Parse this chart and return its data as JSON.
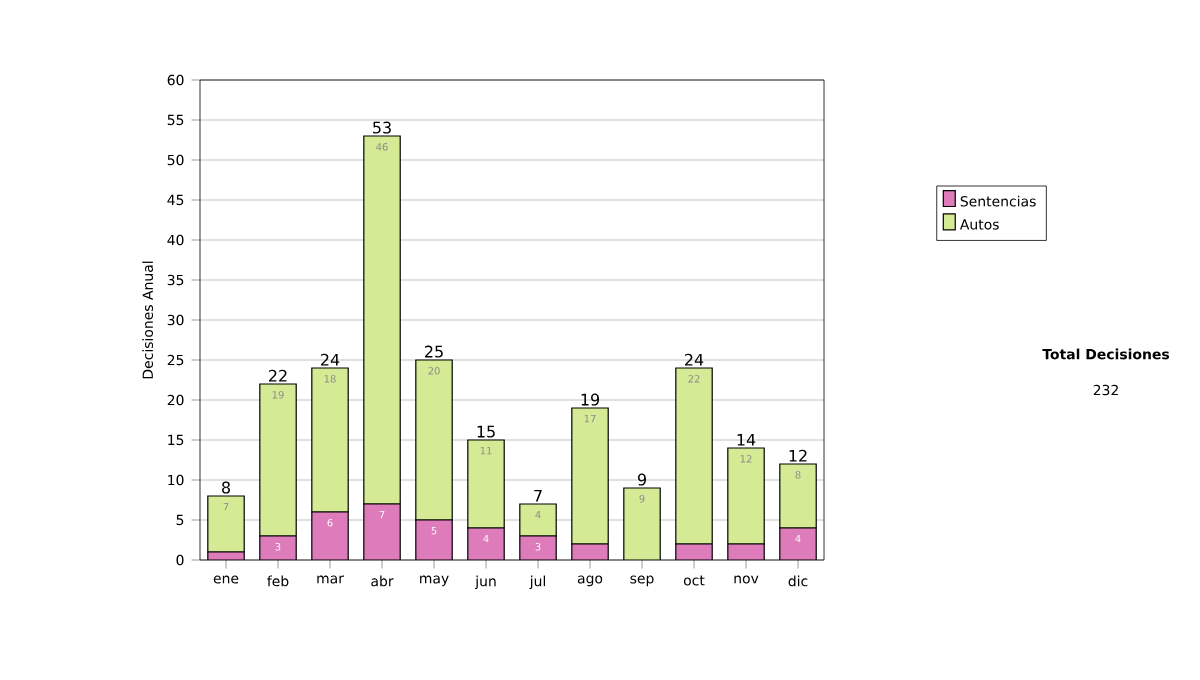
{
  "chart_data": {
    "type": "bar",
    "stacked": true,
    "ylabel": "Decisiones Anual",
    "categories": [
      "ene",
      "feb",
      "mar",
      "abr",
      "may",
      "jun",
      "jul",
      "ago",
      "sep",
      "oct",
      "nov",
      "dic"
    ],
    "series": [
      {
        "name": "Sentencias",
        "color": "#dd7bbb",
        "values": [
          1,
          3,
          6,
          7,
          5,
          4,
          3,
          2,
          0,
          2,
          2,
          4
        ],
        "value_labels": [
          null,
          "3",
          "6",
          "7",
          "5",
          "4",
          "3",
          null,
          null,
          null,
          null,
          "4"
        ]
      },
      {
        "name": "Autos",
        "color": "#d4ea94",
        "values": [
          7,
          19,
          18,
          46,
          20,
          11,
          4,
          17,
          9,
          22,
          12,
          8
        ],
        "value_labels": [
          "7",
          "19",
          "18",
          "46",
          "20",
          "11",
          "4",
          "17",
          "9",
          "22",
          "12",
          "8"
        ]
      }
    ],
    "totals": [
      "8",
      "22",
      "24",
      "53",
      "25",
      "15",
      "7",
      "19",
      "9",
      "24",
      "14",
      "12"
    ],
    "ylim": [
      0,
      60
    ],
    "yticks": [
      0,
      5,
      10,
      15,
      20,
      25,
      30,
      35,
      40,
      45,
      50,
      55,
      60
    ],
    "grid": "y",
    "legend": "right",
    "annotations": [
      "Total Decisiones",
      "232"
    ]
  }
}
